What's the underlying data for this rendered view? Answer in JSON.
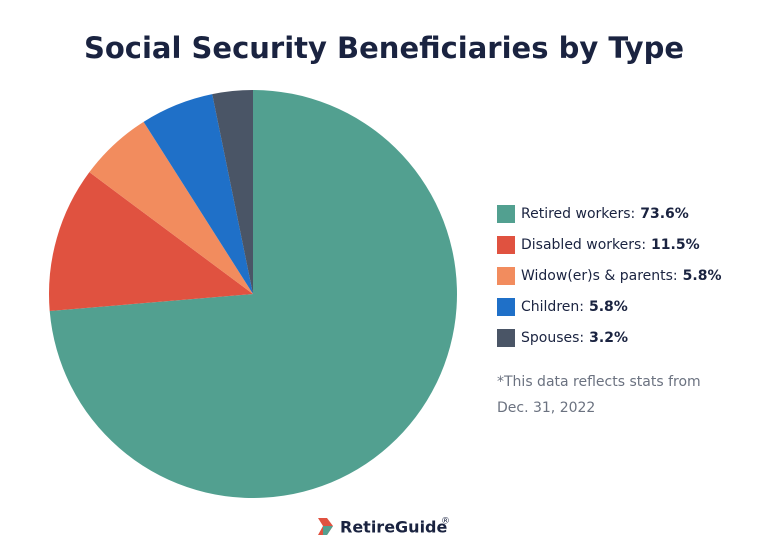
{
  "chart_data": {
    "type": "pie",
    "title": "Social Security Beneficiaries by Type",
    "categories": [
      "Retired workers:",
      "Disabled workers:",
      "Widow(er)s & parents:",
      "Children:",
      "Spouses:"
    ],
    "values": [
      73.6,
      11.5,
      5.8,
      5.8,
      3.2
    ],
    "value_labels": [
      "73.6%",
      "11.5%",
      "5.8%",
      "5.8%",
      "3.2%"
    ],
    "colors": [
      "#52a090",
      "#e05240",
      "#f28c5e",
      "#1f70c8",
      "#4a5566"
    ],
    "legend": "right",
    "note": [
      "*This data reflects stats from",
      "Dec. 31, 2022"
    ]
  },
  "footer": {
    "brand": "RetireGuide",
    "brand_mark": "®"
  }
}
